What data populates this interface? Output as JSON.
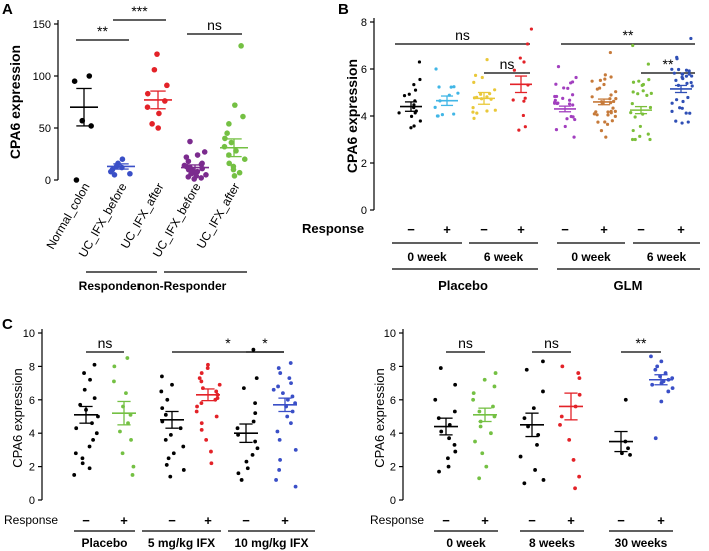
{
  "panels": {
    "A": {
      "letter": "A",
      "ylabel": "CPA6 expression",
      "yticks": [
        "0",
        "50",
        "100",
        "150"
      ],
      "ylim": [
        0,
        150
      ],
      "categories": [
        "Normal_colon",
        "UC_IFX_before",
        "UC_IFX_after",
        "UC_IFX_before",
        "UC_IFX_after"
      ],
      "group_labels": [
        "Responder",
        "non-Responder"
      ],
      "significance": [
        {
          "label": "**",
          "from": 0,
          "to": 1
        },
        {
          "label": "***",
          "from": 1,
          "to": 2
        },
        {
          "label": "ns",
          "from": 3,
          "to": 4
        }
      ],
      "colors": [
        "#000000",
        "#3a4fc7",
        "#e32228",
        "#7b2b8e",
        "#74c043"
      ],
      "values": [
        [
          100,
          95,
          57,
          52,
          0
        ],
        [
          20,
          16,
          13,
          12,
          10,
          8,
          6,
          5
        ],
        [
          121,
          106,
          91,
          83,
          76,
          70,
          64,
          54,
          50
        ],
        [
          37,
          27,
          24,
          22,
          18,
          16,
          15,
          14,
          13,
          12,
          11,
          10,
          9,
          8,
          7,
          6,
          5,
          4,
          3,
          2,
          1
        ],
        [
          129,
          72,
          61,
          54,
          45,
          40,
          36,
          32,
          28,
          24,
          20,
          16,
          13,
          10,
          7,
          4
        ]
      ],
      "means": [
        70,
        13,
        77,
        12,
        31
      ],
      "sems": [
        18,
        2.5,
        8.5,
        2.5,
        8.5
      ]
    },
    "B": {
      "letter": "B",
      "ylabel": "CPA6 expression",
      "yticks": [
        "0",
        "2",
        "4",
        "6",
        "8"
      ],
      "ylim": [
        0,
        8
      ],
      "response_label": "Response",
      "signs": [
        "−",
        "+",
        "−",
        "+",
        "−",
        "+",
        "−",
        "+"
      ],
      "week_labels": [
        "0 week",
        "6 week",
        "0 week",
        "6 week"
      ],
      "group_labels": [
        "Placebo",
        "GLM"
      ],
      "significance": [
        {
          "label": "ns",
          "from": 0,
          "to": 3
        },
        {
          "label": "ns",
          "from": 2,
          "to": 3
        },
        {
          "label": "**",
          "from": 4,
          "to": 7
        },
        {
          "label": "**",
          "from": 6,
          "to": 7
        }
      ],
      "colors": [
        "#000000",
        "#41b6e6",
        "#e9c83a",
        "#e32228",
        "#a23fbf",
        "#c67a3a",
        "#7bbf3a",
        "#2f4fb5"
      ],
      "means": [
        4.4,
        4.65,
        4.75,
        5.35,
        4.3,
        4.6,
        4.25,
        5.15
      ],
      "sems": [
        0.2,
        0.2,
        0.25,
        0.35,
        0.12,
        0.12,
        0.15,
        0.15
      ],
      "spread_low": [
        3.5,
        4.0,
        3.9,
        3.4,
        3.1,
        3.1,
        3.0,
        3.7
      ],
      "spread_high": [
        6.3,
        6.0,
        6.4,
        7.7,
        6.1,
        6.7,
        7.0,
        7.3
      ],
      "counts": [
        16,
        12,
        18,
        12,
        26,
        34,
        24,
        32
      ]
    },
    "C1": {
      "letter": "C",
      "ylabel": "CPA6 expression",
      "yticks": [
        "0",
        "2",
        "4",
        "6",
        "8",
        "10"
      ],
      "ylim": [
        0,
        10
      ],
      "response_label": "Response",
      "signs": [
        "−",
        "+",
        "−",
        "+",
        "−",
        "+"
      ],
      "group_labels": [
        "Placebo",
        "5 mg/kg IFX",
        "10 mg/kg IFX"
      ],
      "significance": [
        {
          "label": "ns",
          "from": 0,
          "to": 1
        },
        {
          "label": "*",
          "from": 2,
          "to": 3
        },
        {
          "label": "*",
          "from": 4,
          "to": 5
        }
      ],
      "colors": [
        "#000000",
        "#74c043",
        "#000000",
        "#e32228",
        "#000000",
        "#3a4fc7"
      ],
      "values": [
        [
          8.1,
          7.6,
          7.2,
          6.6,
          6.1,
          5.7,
          5.4,
          5.0,
          4.6,
          4.3,
          4.0,
          3.6,
          3.2,
          2.8,
          2.5,
          2.2,
          1.9,
          1.5
        ],
        [
          8.5,
          8.0,
          7.1,
          6.4,
          5.6,
          5.1,
          4.6,
          4.1,
          3.6,
          2.8,
          2.0,
          1.5
        ],
        [
          7.4,
          6.9,
          6.5,
          6.0,
          5.5,
          5.1,
          4.7,
          4.3,
          3.9,
          3.6,
          3.2,
          2.8,
          2.5,
          2.1,
          1.8,
          1.4
        ],
        [
          8.1,
          7.9,
          7.6,
          7.3,
          7.1,
          6.9,
          6.7,
          6.5,
          6.3,
          6.1,
          6.0,
          5.8,
          5.6,
          5.3,
          5.0,
          4.6,
          4.2,
          3.6,
          2.9,
          2.2
        ],
        [
          9.0,
          7.3,
          6.7,
          5.8,
          5.2,
          4.7,
          4.3,
          3.9,
          3.5,
          3.1,
          2.7,
          2.3,
          1.9,
          1.6,
          1.2
        ],
        [
          8.2,
          7.9,
          7.6,
          7.3,
          7.0,
          6.8,
          6.6,
          6.4,
          6.2,
          6.0,
          5.8,
          5.6,
          5.3,
          5.0,
          4.6,
          4.1,
          3.6,
          3.0,
          2.4,
          1.8,
          1.2,
          0.8
        ]
      ],
      "means": [
        5.1,
        5.2,
        4.8,
        6.3,
        4.0,
        5.7
      ],
      "sems": [
        0.5,
        0.7,
        0.5,
        0.35,
        0.55,
        0.4
      ]
    },
    "C2": {
      "ylabel": "CPA6 expression",
      "yticks": [
        "0",
        "2",
        "4",
        "6",
        "8",
        "10"
      ],
      "ylim": [
        0,
        10
      ],
      "response_label": "Response",
      "signs": [
        "−",
        "+",
        "−",
        "+",
        "−",
        "+"
      ],
      "group_labels": [
        "0 week",
        "8 weeks",
        "30 weeks"
      ],
      "significance": [
        {
          "label": "ns",
          "from": 0,
          "to": 1
        },
        {
          "label": "ns",
          "from": 2,
          "to": 3
        },
        {
          "label": "**",
          "from": 4,
          "to": 5
        }
      ],
      "colors": [
        "#000000",
        "#74c043",
        "#000000",
        "#e32228",
        "#000000",
        "#3a4fc7"
      ],
      "values": [
        [
          7.9,
          6.9,
          6.0,
          5.3,
          4.9,
          4.5,
          4.1,
          3.7,
          3.3,
          2.9,
          2.5,
          2.0,
          1.7
        ],
        [
          7.6,
          7.2,
          6.8,
          6.4,
          6.0,
          5.6,
          5.3,
          5.0,
          4.7,
          4.4,
          4.0,
          3.5,
          2.8,
          2.0,
          1.3
        ],
        [
          8.3,
          7.8,
          6.5,
          5.5,
          4.9,
          4.4,
          3.9,
          3.3,
          2.6,
          1.8,
          1.2,
          1.0
        ],
        [
          8.0,
          7.6,
          7.3,
          6.3,
          5.6,
          5.0,
          4.5,
          3.6,
          2.4,
          1.4,
          0.7
        ],
        [
          6.0,
          3.5,
          3.1,
          2.8,
          2.7
        ],
        [
          8.6,
          8.3,
          8.0,
          7.8,
          7.6,
          7.4,
          7.3,
          7.2,
          7.1,
          7.0,
          6.9,
          6.7,
          6.5,
          5.9,
          3.7
        ]
      ],
      "means": [
        4.4,
        5.1,
        4.5,
        5.6,
        3.5,
        7.2
      ],
      "sems": [
        0.5,
        0.4,
        0.7,
        0.8,
        0.6,
        0.3
      ]
    }
  }
}
